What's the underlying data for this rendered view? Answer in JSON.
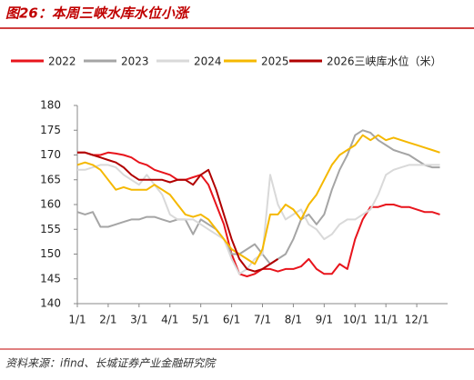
{
  "chart_data": {
    "type": "line",
    "title": "图26：本周三峡水库水位小涨",
    "source": "资料来源：ifind、长城证券产业金融研究院",
    "categories": [
      "1/1",
      null,
      null,
      null,
      "2/1",
      null,
      null,
      null,
      "3/1",
      null,
      null,
      null,
      "4/1",
      null,
      null,
      null,
      "5/1",
      null,
      null,
      null,
      "6/1",
      null,
      null,
      null,
      "7/1",
      null,
      null,
      null,
      "8/1",
      null,
      null,
      null,
      "9/1",
      null,
      null,
      null,
      "10/1",
      null,
      null,
      null,
      "11/1",
      null,
      null,
      null,
      "12/1",
      null,
      null,
      null
    ],
    "ylim": [
      140,
      180
    ],
    "yticks": [
      140,
      145,
      150,
      155,
      160,
      165,
      170,
      175,
      180
    ],
    "series": [
      {
        "name": "2022",
        "color": "#e8141c",
        "values": [
          170.5,
          170.5,
          170,
          170,
          170.5,
          170.3,
          170,
          169.5,
          168.5,
          168,
          167,
          166.5,
          166,
          165,
          165,
          165.5,
          166,
          164,
          160,
          156,
          150,
          146,
          145.5,
          146,
          147,
          147,
          146.5,
          147,
          147,
          147.5,
          149,
          147,
          146,
          146,
          148,
          147,
          153,
          157,
          159.5,
          159.5,
          160,
          160,
          159.5,
          159.5,
          159,
          158.5,
          158.5,
          158
        ]
      },
      {
        "name": "2023",
        "color": "#a5a5a5",
        "values": [
          158.5,
          158,
          158.5,
          155.5,
          155.5,
          156,
          156.5,
          157,
          157,
          157.5,
          157.5,
          157,
          156.5,
          157,
          157,
          154,
          157,
          156,
          155,
          153,
          150,
          150,
          151,
          152,
          150,
          148,
          149,
          150,
          153,
          157,
          158,
          156,
          158,
          163,
          167,
          170,
          174,
          175,
          174.5,
          173,
          172,
          171,
          170.5,
          170,
          169,
          168,
          167.5,
          167.5
        ]
      },
      {
        "name": "2024",
        "color": "#d9d9d9",
        "values": [
          167,
          167,
          167.5,
          168,
          168,
          167.5,
          166,
          165,
          164,
          166,
          164,
          162,
          158,
          157,
          157,
          157,
          156,
          155,
          154,
          153,
          149,
          146,
          147,
          149,
          150,
          166,
          160,
          157,
          158,
          159,
          156,
          155,
          153,
          154,
          156,
          157,
          157,
          158,
          159,
          162,
          166,
          167,
          167.5,
          168,
          168,
          168,
          168,
          168
        ]
      },
      {
        "name": "2025",
        "color": "#f5b800",
        "values": [
          168,
          168.5,
          168,
          167,
          165,
          163,
          163.5,
          163,
          163,
          163,
          164,
          163,
          162,
          160,
          158,
          157.5,
          158,
          157,
          155,
          153,
          151,
          150,
          149,
          148,
          151,
          158,
          158,
          160,
          159,
          157,
          160,
          162,
          165,
          168,
          170,
          171,
          172,
          174,
          173,
          174,
          173,
          173.5,
          173,
          172.5,
          172,
          171.5,
          171,
          170.5
        ]
      },
      {
        "name": "2026三峡库水位（米）",
        "color": "#b00000",
        "values": [
          170.5,
          170.5,
          170,
          169.5,
          169,
          168.5,
          167.5,
          166,
          165,
          165,
          165,
          165,
          164.5,
          165,
          165,
          164,
          166,
          167,
          163,
          158,
          153,
          149,
          147,
          146.5,
          147,
          148,
          149,
          null,
          null,
          null,
          null,
          null,
          null,
          null,
          null,
          null,
          null,
          null,
          null,
          null,
          null,
          null,
          null,
          null,
          null,
          null,
          null,
          null
        ]
      }
    ]
  }
}
